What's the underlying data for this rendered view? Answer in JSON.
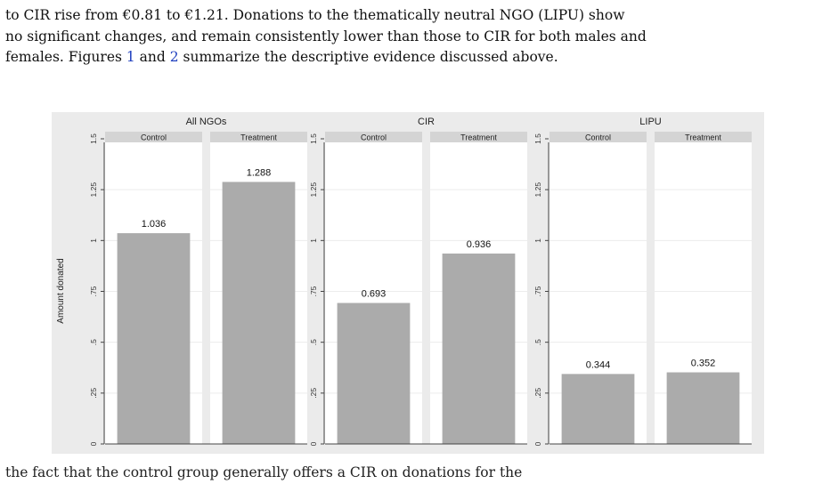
{
  "paragraph": {
    "line1": "to CIR rise from €0.81 to €1.21. Donations to the thematically neutral NGO (LIPU) show",
    "line2": "no significant changes, and remain consistently lower than those to CIR for both males and",
    "line3_prefix": "females. Figures ",
    "fig_ref_1": "1",
    "line3_mid": " and ",
    "fig_ref_2": "2",
    "line3_suffix": " summarize the descriptive evidence discussed above."
  },
  "bottom_partial_text": "the fact that the control group generally offers a CIR on donations for the",
  "chart_data": {
    "type": "bar",
    "ylabel": "Amount donated",
    "ylim": [
      0,
      1.5
    ],
    "yticks": [
      0,
      0.25,
      0.5,
      0.75,
      1,
      1.25,
      1.5
    ],
    "ytick_labels": [
      "0",
      ".25",
      ".5",
      ".75",
      "1",
      "1.25",
      "1.5"
    ],
    "grid": true,
    "bar_color": "#ababab",
    "panel_bg": "#ebebeb",
    "strip_color": "#d4d4d4",
    "panels": [
      {
        "title": "All NGOs",
        "groups": [
          {
            "label": "Control",
            "value": 1.036,
            "value_label": "1.036"
          },
          {
            "label": "Treatment",
            "value": 1.288,
            "value_label": "1.288"
          }
        ]
      },
      {
        "title": "CIR",
        "groups": [
          {
            "label": "Control",
            "value": 0.693,
            "value_label": "0.693"
          },
          {
            "label": "Treatment",
            "value": 0.936,
            "value_label": "0.936"
          }
        ]
      },
      {
        "title": "LIPU",
        "groups": [
          {
            "label": "Control",
            "value": 0.344,
            "value_label": "0.344"
          },
          {
            "label": "Treatment",
            "value": 0.352,
            "value_label": "0.352"
          }
        ]
      }
    ]
  }
}
